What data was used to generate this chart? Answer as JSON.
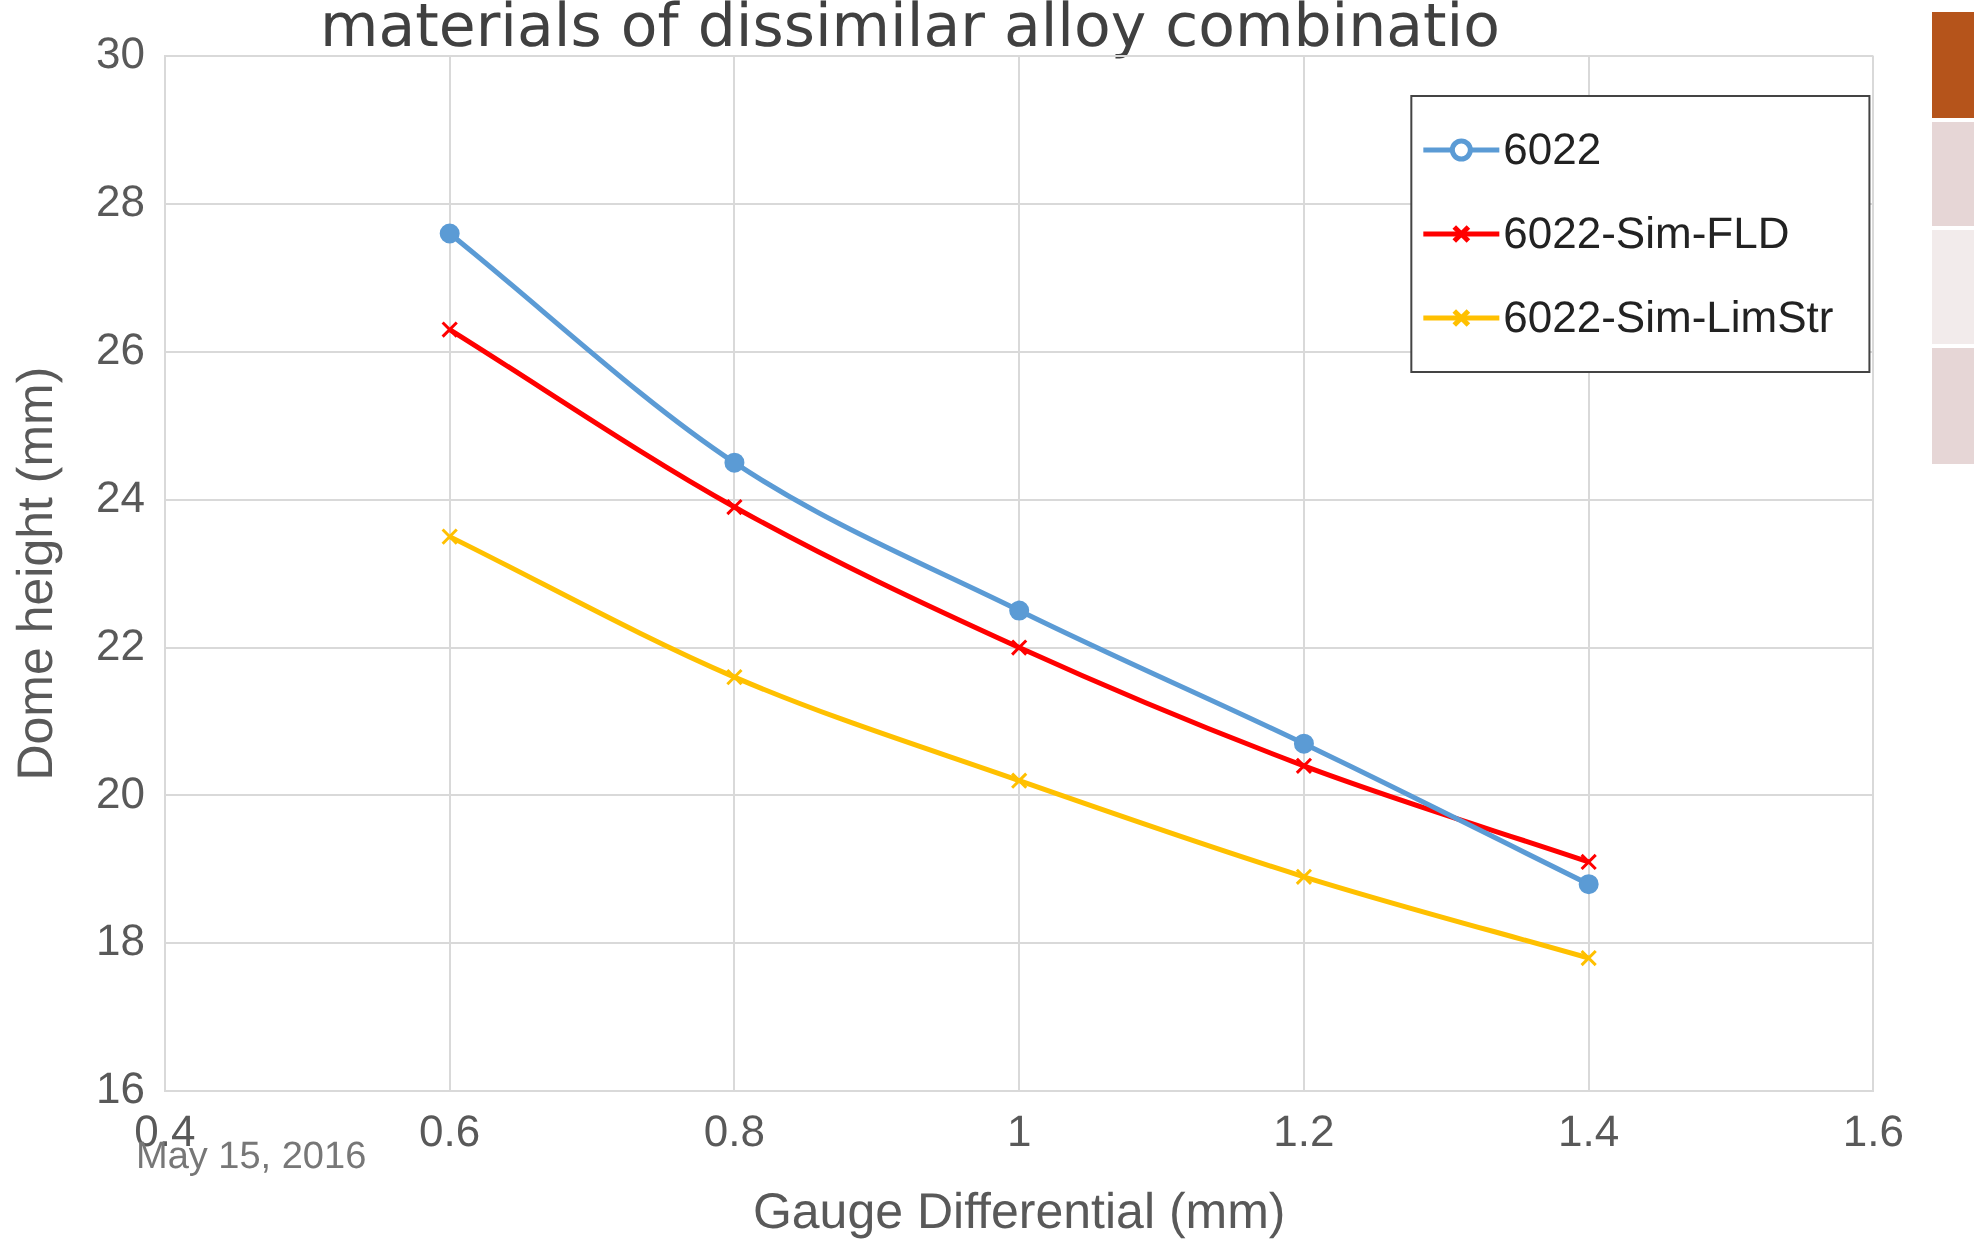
{
  "chart_data": {
    "type": "line",
    "title": "materials of dissimilar alloy combinatio",
    "xlabel": "Gauge Differential (mm)",
    "ylabel": "Dome height (mm)",
    "x": [
      0.6,
      0.8,
      1.0,
      1.2,
      1.4
    ],
    "series": [
      {
        "name": "6022",
        "color": "#5b9bd5",
        "marker": "circle",
        "values": [
          27.6,
          24.5,
          22.5,
          20.7,
          18.8
        ]
      },
      {
        "name": "6022-Sim-FLD",
        "color": "#ff0000",
        "marker": "cross",
        "values": [
          26.3,
          23.9,
          22.0,
          20.4,
          19.1
        ]
      },
      {
        "name": "6022-Sim-LimStr",
        "color": "#ffc000",
        "marker": "cross",
        "values": [
          23.5,
          21.6,
          20.2,
          18.9,
          17.8
        ]
      }
    ],
    "xlim": [
      0.4,
      1.6
    ],
    "xticks": [
      0.4,
      0.6,
      0.8,
      1,
      1.2,
      1.4,
      1.6
    ],
    "ylim": [
      16,
      30
    ],
    "yticks": [
      16,
      18,
      20,
      22,
      24,
      26,
      28,
      30
    ],
    "grid": true,
    "legend": "top right",
    "line_style": "solid",
    "annotations": [
      "May 15, 2016"
    ]
  }
}
